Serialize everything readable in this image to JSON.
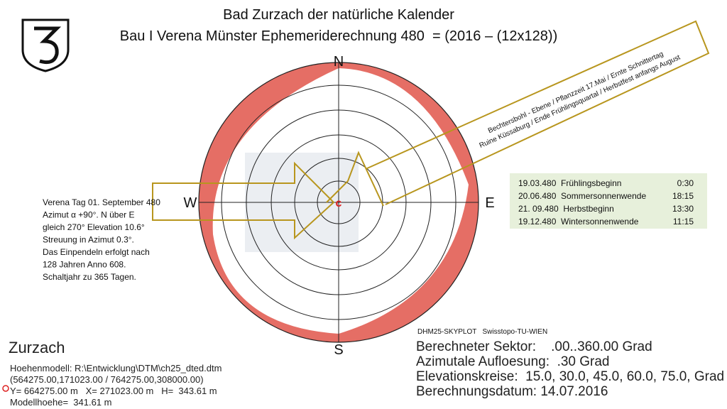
{
  "header": {
    "title_line1": "Bad Zurzach der natürliche Kalender",
    "title_line2": "Bau I Verena Münster Ephemeriderechnung 480  = (2016 – (12x128))"
  },
  "compass": {
    "north": "N",
    "east": "E",
    "south": "S",
    "west": "W"
  },
  "center_label": "c",
  "left_note": [
    "Verena Tag 01. September 480",
    "Azimut α +90°. N über E",
    "gleich 270° Elevation 10.6°",
    "Streuung in Azimut 0.3°.",
    "Das Einpendeln erfolgt nach",
    "128 Jahren Anno 608.",
    "Schaltjahr zu 365 Tagen."
  ],
  "banner": [
    "Bechtersbohl - Ebene / Pflanzzeit 17.Mai / Ernte Schnittertag",
    "Ruine Küssaburg / Ende Frühlingsquartal / Herbstfest anfangs August"
  ],
  "table": {
    "rows": [
      [
        "19.03.480  Frühlingsbeginn",
        "0:30"
      ],
      [
        "20.06.480  Sommersonnenwende",
        "18:15"
      ],
      [
        "21. 09.480  Herbstbeginn",
        "13:30"
      ],
      [
        "19.12.480  Wintersonnenwende",
        "11:15"
      ]
    ]
  },
  "bottom_left": {
    "title": "Zurzach",
    "lines": [
      "Hoehenmodell: R:\\Entwicklung\\DTM\\ch25_dted.dtm",
      "(564275.00,171023.00 / 764275.00,308000.00)",
      "Y= 664275.00 m   X= 271023.00 m   H=  343.61 m",
      "Modellhoehe=  341.61 m"
    ]
  },
  "bottom_right": {
    "source": "DHM25-SKYPLOT   Swisstopo-TU-WIEN",
    "lines": [
      "Berechneter Sektor:    .00..360.00 Grad",
      "Azimutale Aufloesung:  .30 Grad",
      "Elevationskreise:  15.0, 30.0, 45.0, 60.0, 75.0, Grad",
      "Berechnungsdatum: 14.07.2016"
    ]
  }
}
